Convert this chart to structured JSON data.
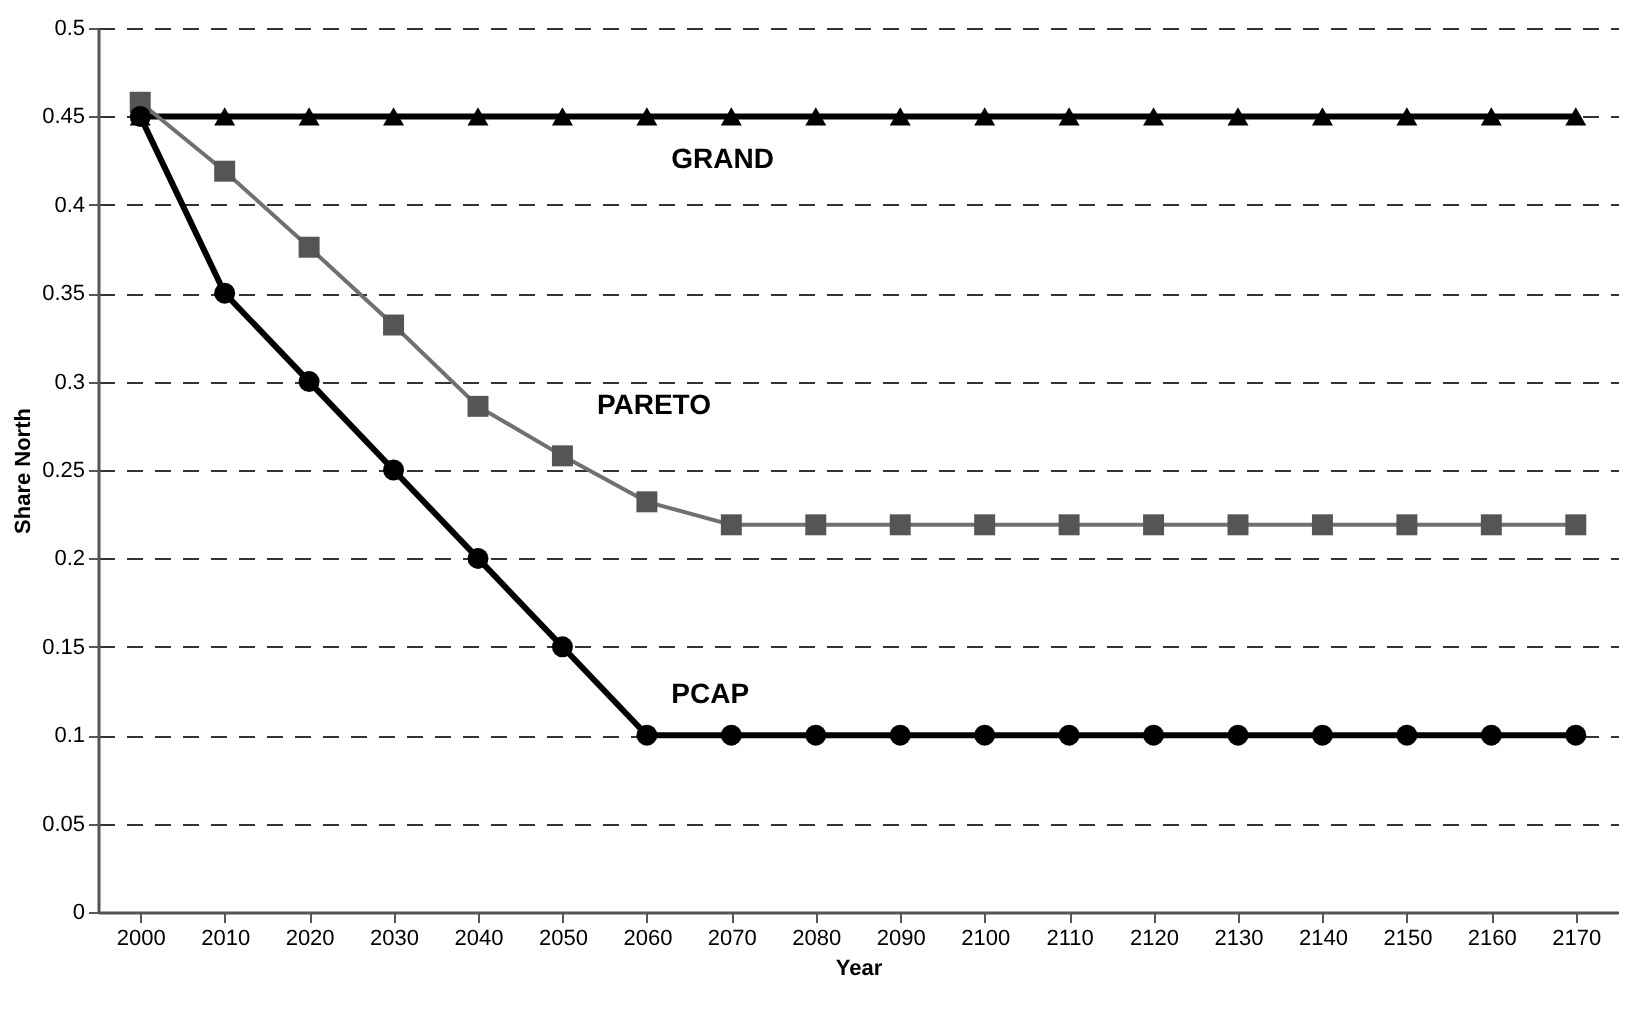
{
  "chart_data": {
    "type": "line",
    "xlabel": "Year",
    "ylabel": "Share North",
    "categories": [
      "2000",
      "2010",
      "2020",
      "2030",
      "2040",
      "2050",
      "2060",
      "2070",
      "2080",
      "2090",
      "2100",
      "2110",
      "2120",
      "2130",
      "2140",
      "2150",
      "2160",
      "2170"
    ],
    "series": [
      {
        "name": "GRAND",
        "color": "#000000",
        "marker": "triangle",
        "values": [
          0.45,
          0.45,
          0.45,
          0.45,
          0.45,
          0.45,
          0.45,
          0.45,
          0.45,
          0.45,
          0.45,
          0.45,
          0.45,
          0.45,
          0.45,
          0.45,
          0.45,
          0.45
        ]
      },
      {
        "name": "PARETO",
        "color": "#707070",
        "marker": "square",
        "values": [
          0.458,
          0.419,
          0.376,
          0.332,
          0.286,
          0.258,
          0.232,
          0.219,
          0.219,
          0.219,
          0.219,
          0.219,
          0.219,
          0.219,
          0.219,
          0.219,
          0.219,
          0.219
        ]
      },
      {
        "name": "PCAP",
        "color": "#000000",
        "marker": "circle",
        "values": [
          0.45,
          0.35,
          0.3,
          0.25,
          0.2,
          0.15,
          0.1,
          0.1,
          0.1,
          0.1,
          0.1,
          0.1,
          0.1,
          0.1,
          0.1,
          0.1,
          0.1,
          0.1
        ]
      }
    ],
    "ylim": [
      0,
      0.5
    ],
    "yticks": [
      0,
      0.05,
      0.1,
      0.15,
      0.2,
      0.25,
      0.3,
      0.35,
      0.4,
      0.45,
      0.5
    ],
    "grid": "y",
    "line_style": "solid"
  }
}
